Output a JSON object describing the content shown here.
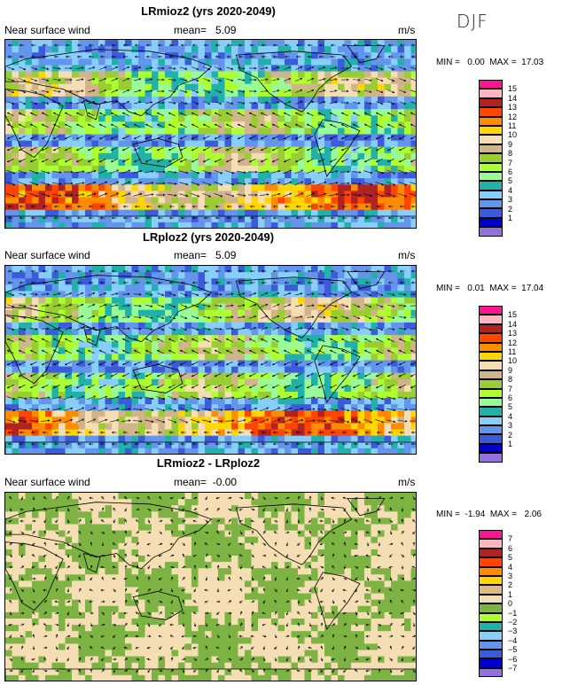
{
  "season": "DJF",
  "panels": [
    {
      "title": "LRmioz2 (yrs 2020-2049)",
      "variable": "Near surface wind",
      "mean_text": "mean=   5.09",
      "unit": "m/s",
      "minmax_text": "MIN =   0.00  MAX =  17.03",
      "legend_labels": [
        "15",
        "14",
        "13",
        "12",
        "11",
        "10",
        "9",
        "8",
        "7",
        "6",
        "5",
        "4",
        "3",
        "2",
        "1"
      ],
      "kind": "abs"
    },
    {
      "title": "LRploz2 (yrs 2020-2049)",
      "variable": "Near surface wind",
      "mean_text": "mean=   5.09",
      "unit": "m/s",
      "minmax_text": "MIN =   0.01  MAX =  17.04",
      "legend_labels": [
        "15",
        "14",
        "13",
        "12",
        "11",
        "10",
        "9",
        "8",
        "7",
        "6",
        "5",
        "4",
        "3",
        "2",
        "1"
      ],
      "kind": "abs"
    },
    {
      "title": "LRmioz2 - LRploz2",
      "variable": "Near surface wind",
      "mean_text": "mean=  -0.00",
      "unit": "m/s",
      "minmax_text": "MIN =  -1.94  MAX =   2.06",
      "legend_labels": [
        "7",
        "6",
        "5",
        "4",
        "3",
        "2",
        "1",
        "0",
        "−1",
        "−2",
        "−3",
        "−4",
        "−5",
        "−6",
        "−7"
      ],
      "kind": "diff"
    }
  ],
  "palette": {
    "abs": [
      "#ff1493",
      "#ffc0cb",
      "#c0282d",
      "#e03030",
      "#ff7f00",
      "#ffb000",
      "#ffd700",
      "#f5deb3",
      "#d2b48c",
      "#9acd32",
      "#c0f060",
      "#90ee90",
      "#20b2aa",
      "#afeeee",
      "#87ceeb",
      "#6495ed",
      "#4169e1",
      "#0000cd",
      "#9370db"
    ],
    "legend_abs": [
      "#ff1493",
      "#ffb6c1",
      "#b22222",
      "#ff4500",
      "#ff8c00",
      "#ffd700",
      "#f5deb3",
      "#d2b48c",
      "#9acd32",
      "#adff2f",
      "#98fb98",
      "#20b2aa",
      "#87cefa",
      "#6495ed",
      "#3b5bdb",
      "#0000cd",
      "#9370db"
    ],
    "legend_diff": [
      "#ff1493",
      "#ffb6c1",
      "#b22222",
      "#ff4500",
      "#ff8c00",
      "#ffd700",
      "#deb887",
      "#f5deb3",
      "#7cb342",
      "#adff2f",
      "#20b2aa",
      "#87cefa",
      "#6495ed",
      "#3b5bdb",
      "#0000cd",
      "#9370db"
    ]
  }
}
